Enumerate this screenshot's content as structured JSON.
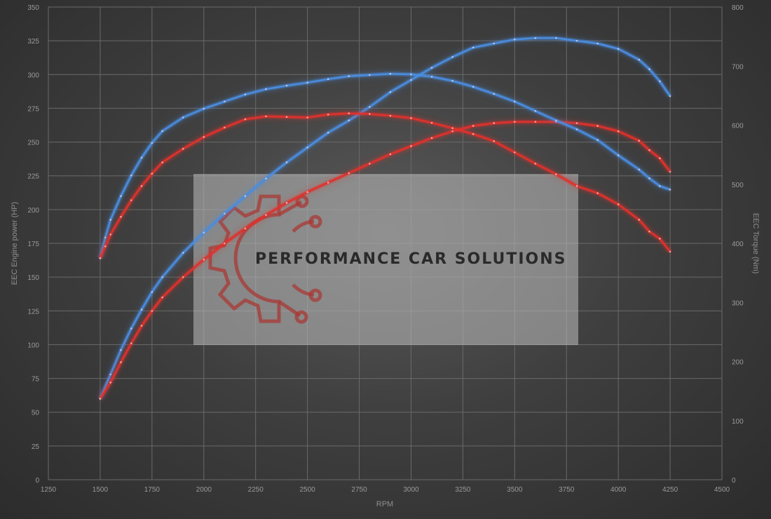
{
  "chart_data": {
    "type": "line",
    "xlabel": "RPM",
    "ylabel_left": "EEC Engine power (HP)",
    "ylabel_right": "EEC Torque (Nm)",
    "xlim": [
      1250,
      4500
    ],
    "ylim_left": [
      0,
      350
    ],
    "ylim_right": [
      0,
      800
    ],
    "x_ticks": [
      "1250",
      "1500",
      "1750",
      "2000",
      "2250",
      "2500",
      "2750",
      "3000",
      "3250",
      "3500",
      "3750",
      "4000",
      "4250",
      "4500"
    ],
    "y_ticks_left": [
      "0",
      "25",
      "50",
      "75",
      "100",
      "125",
      "150",
      "175",
      "200",
      "225",
      "250",
      "275",
      "300",
      "325",
      "350"
    ],
    "y_ticks_right": [
      "0",
      "100",
      "200",
      "300",
      "400",
      "500",
      "600",
      "700",
      "800"
    ],
    "grid": true,
    "series": [
      {
        "axis": "left",
        "color": "#4a8de0",
        "x": [
          1500,
          1550,
          1600,
          1650,
          1700,
          1750,
          1800,
          1900,
          2000,
          2100,
          2200,
          2300,
          2400,
          2500,
          2600,
          2700,
          2800,
          2900,
          3000,
          3100,
          3200,
          3300,
          3400,
          3500,
          3600,
          3700,
          3800,
          3900,
          4000,
          4100,
          4150,
          4200,
          4250
        ],
        "y": [
          60,
          78,
          96,
          112,
          126,
          139,
          150,
          168,
          183,
          197,
          210,
          223,
          235,
          246,
          257,
          266,
          276,
          287,
          296,
          305,
          313,
          320,
          323,
          326,
          327,
          327,
          325,
          323,
          319,
          311,
          304,
          295,
          284
        ]
      },
      {
        "axis": "left",
        "color": "#e0312b",
        "x": [
          1500,
          1550,
          1600,
          1650,
          1700,
          1750,
          1800,
          1900,
          2000,
          2100,
          2200,
          2300,
          2400,
          2500,
          2600,
          2700,
          2800,
          2900,
          3000,
          3100,
          3200,
          3300,
          3400,
          3500,
          3600,
          3700,
          3800,
          3900,
          4000,
          4100,
          4150,
          4200,
          4250
        ],
        "y": [
          60,
          72,
          87,
          101,
          114,
          125,
          135,
          150,
          163,
          175,
          186,
          196,
          205,
          213,
          220,
          227,
          234,
          241,
          247,
          253,
          258,
          262,
          264,
          265,
          265,
          265,
          264,
          262,
          258,
          251,
          244,
          238,
          228
        ]
      },
      {
        "axis": "right",
        "color": "#4a8de0",
        "x": [
          1500,
          1525,
          1550,
          1600,
          1650,
          1700,
          1750,
          1800,
          1900,
          2000,
          2100,
          2200,
          2300,
          2400,
          2500,
          2600,
          2700,
          2800,
          2900,
          3000,
          3100,
          3200,
          3300,
          3400,
          3500,
          3600,
          3700,
          3800,
          3900,
          4000,
          4100,
          4150,
          4200,
          4250
        ],
        "y": [
          375,
          410,
          440,
          480,
          515,
          545,
          570,
          590,
          613,
          628,
          640,
          652,
          661,
          667,
          672,
          678,
          683,
          685,
          687,
          686,
          682,
          675,
          665,
          653,
          640,
          624,
          608,
          593,
          575,
          549,
          525,
          510,
          497,
          491
        ]
      },
      {
        "axis": "right",
        "color": "#e0312b",
        "x": [
          1500,
          1525,
          1550,
          1600,
          1650,
          1700,
          1750,
          1800,
          1900,
          2000,
          2100,
          2200,
          2300,
          2400,
          2500,
          2600,
          2700,
          2800,
          2900,
          3000,
          3100,
          3200,
          3300,
          3400,
          3500,
          3600,
          3700,
          3800,
          3900,
          4000,
          4100,
          4150,
          4200,
          4250
        ],
        "y": [
          375,
          395,
          415,
          445,
          473,
          497,
          518,
          537,
          560,
          580,
          596,
          610,
          615,
          614,
          613,
          618,
          620,
          619,
          616,
          612,
          604,
          595,
          585,
          573,
          554,
          535,
          517,
          497,
          485,
          466,
          440,
          420,
          408,
          386
        ]
      }
    ]
  },
  "watermark": {
    "text": "PERFORMANCE CAR SOLUTIONS"
  }
}
